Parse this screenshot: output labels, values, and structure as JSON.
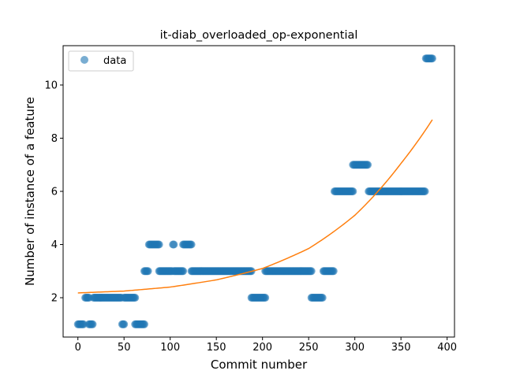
{
  "chart_data": {
    "type": "scatter",
    "title": "it-diab_overloaded_op-exponential",
    "xlabel": "Commit number",
    "ylabel": "Number of instance of a feature",
    "xlim": [
      -16,
      408
    ],
    "ylim": [
      0.52,
      11.48
    ],
    "xticks": [
      0,
      50,
      100,
      150,
      200,
      250,
      300,
      350,
      400
    ],
    "yticks": [
      2,
      4,
      6,
      8,
      10
    ],
    "grid": false,
    "legend": {
      "position": "upper-left",
      "entries": [
        "data"
      ]
    },
    "colors": {
      "points": "#1f77b4",
      "fit": "#ff7f0e"
    },
    "series": [
      {
        "name": "data",
        "kind": "scatter",
        "segments": [
          {
            "x_start": 0,
            "x_end": 6,
            "y": 1
          },
          {
            "x_start": 8,
            "x_end": 12,
            "y": 2
          },
          {
            "x_start": 12,
            "x_end": 16,
            "y": 1
          },
          {
            "x_start": 17,
            "x_end": 47,
            "y": 2
          },
          {
            "x_start": 48,
            "x_end": 50,
            "y": 1
          },
          {
            "x_start": 50,
            "x_end": 62,
            "y": 2
          },
          {
            "x_start": 62,
            "x_end": 72,
            "y": 1
          },
          {
            "x_start": 72,
            "x_end": 76,
            "y": 3
          },
          {
            "x_start": 77,
            "x_end": 88,
            "y": 4
          },
          {
            "x_start": 88,
            "x_end": 102,
            "y": 3
          },
          {
            "x_start": 103,
            "x_end": 104,
            "y": 4
          },
          {
            "x_start": 104,
            "x_end": 114,
            "y": 3
          },
          {
            "x_start": 114,
            "x_end": 123,
            "y": 4
          },
          {
            "x_start": 123,
            "x_end": 188,
            "y": 3
          },
          {
            "x_start": 188,
            "x_end": 203,
            "y": 2
          },
          {
            "x_start": 203,
            "x_end": 253,
            "y": 3
          },
          {
            "x_start": 253,
            "x_end": 265,
            "y": 2
          },
          {
            "x_start": 266,
            "x_end": 277,
            "y": 3
          },
          {
            "x_start": 278,
            "x_end": 298,
            "y": 6
          },
          {
            "x_start": 298,
            "x_end": 314,
            "y": 7
          },
          {
            "x_start": 315,
            "x_end": 376,
            "y": 6
          },
          {
            "x_start": 377,
            "x_end": 384,
            "y": 11
          }
        ]
      },
      {
        "name": "fit",
        "kind": "line",
        "model": "exponential",
        "x": [
          0,
          50,
          100,
          150,
          200,
          250,
          300,
          350,
          385
        ],
        "y": [
          2.18,
          2.25,
          2.4,
          2.67,
          3.1,
          3.85,
          5.1,
          7.05,
          8.75
        ]
      }
    ]
  }
}
